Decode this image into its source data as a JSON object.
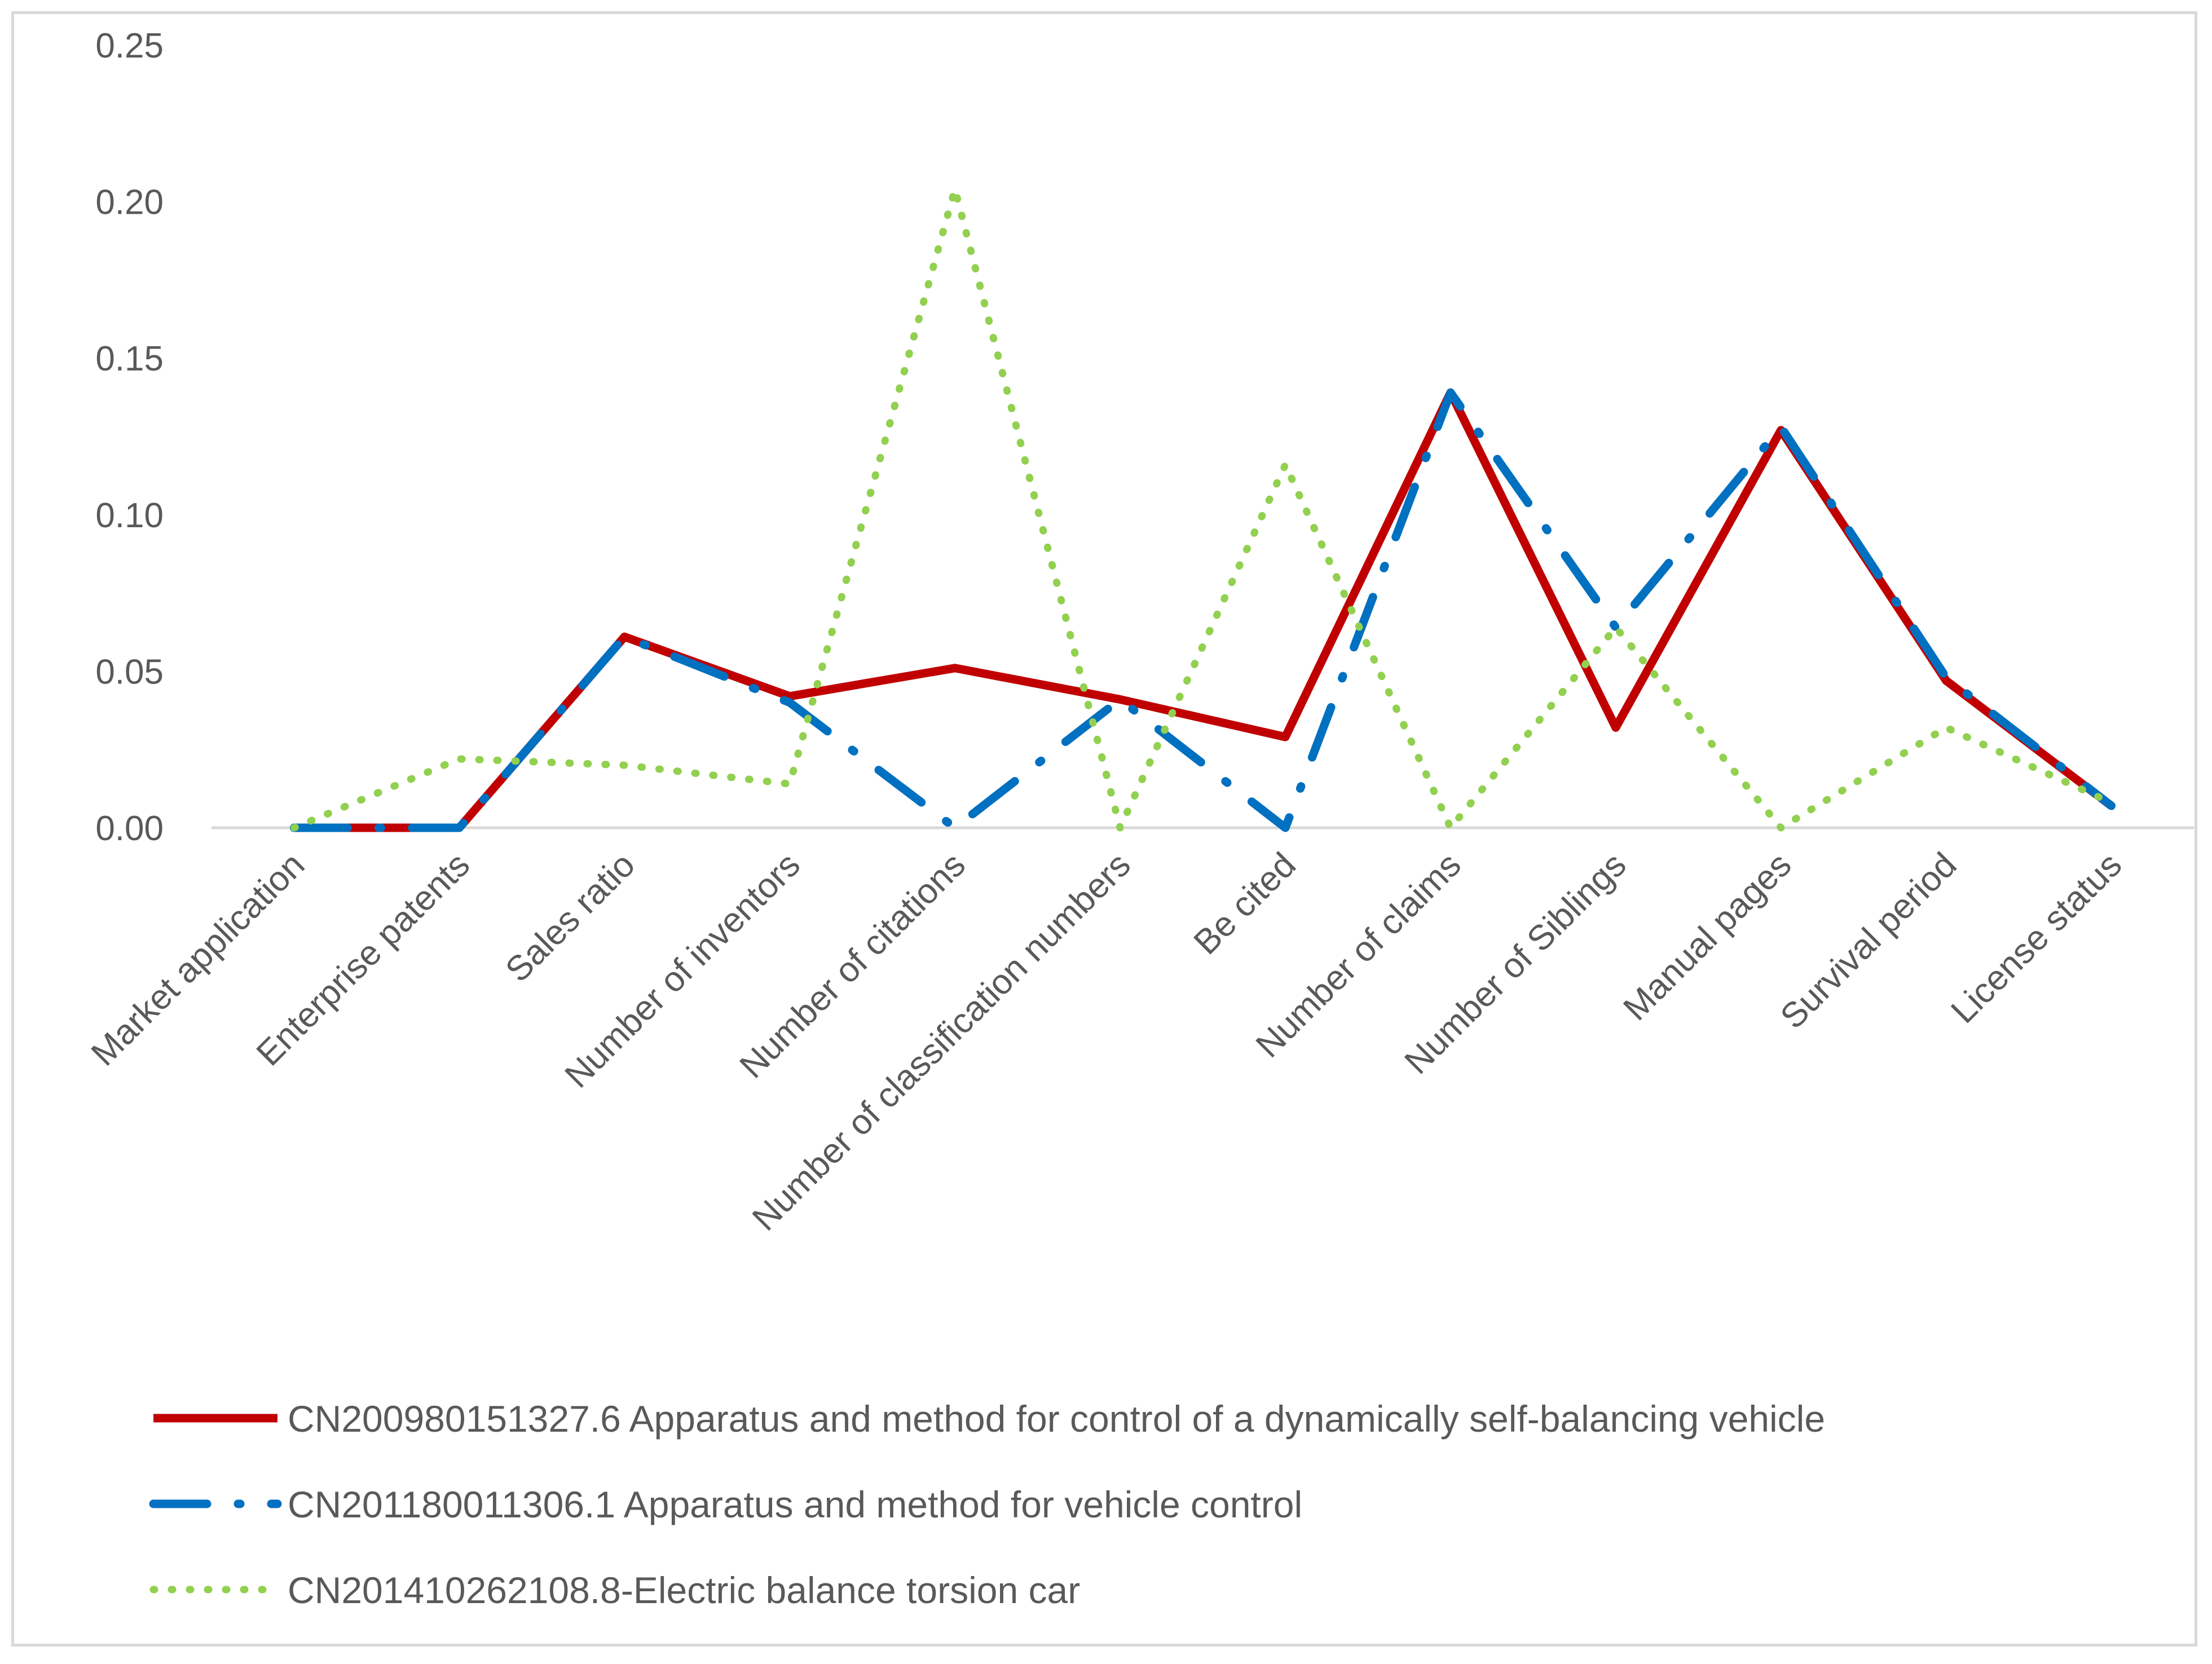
{
  "chart_data": {
    "type": "line",
    "title": "",
    "xlabel": "",
    "ylabel": "",
    "ylim": [
      0,
      0.25
    ],
    "yticks": [
      "0.00",
      "0.05",
      "0.10",
      "0.15",
      "0.20",
      "0.25"
    ],
    "grid": false,
    "legend_position": "bottom",
    "categories": [
      "Market application",
      "Enterprise patents",
      "Sales ratio",
      "Number of inventors",
      "Number of citations",
      "Number of classification numbers",
      "Be cited",
      "Number of claims",
      "Number of Siblings",
      "Manual pages",
      "Survival period",
      "License status"
    ],
    "series": [
      {
        "name": "CN200980151327.6 Apparatus and method for control of a dynamically self-balancing vehicle",
        "color": "#c00000",
        "style": "solid",
        "values": [
          0,
          0,
          0.061,
          0.042,
          0.051,
          0.041,
          0.029,
          0.139,
          0.032,
          0.127,
          0.047,
          0.007
        ]
      },
      {
        "name": "CN201180011306.1 Apparatus and method for vehicle control",
        "color": "#0070c0",
        "style": "dashdot",
        "values": [
          0,
          0,
          0.061,
          0.04,
          0,
          0.041,
          0,
          0.139,
          0.064,
          0.128,
          0.048,
          0.007
        ]
      },
      {
        "name": "CN201410262108.8-Electric balance torsion car",
        "color": "#92d050",
        "style": "dotted",
        "values": [
          0,
          0.022,
          0.02,
          0.014,
          0.204,
          0,
          0.116,
          0,
          0.064,
          0,
          0.032,
          0.008
        ]
      }
    ]
  }
}
